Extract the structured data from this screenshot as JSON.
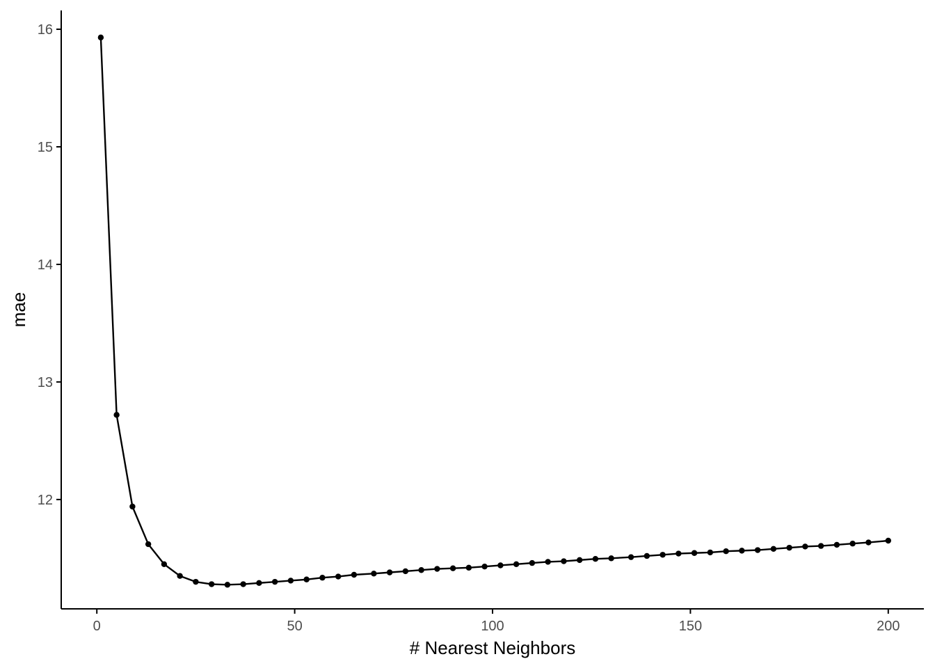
{
  "chart_data": {
    "type": "line",
    "title": "",
    "xlabel": "# Nearest Neighbors",
    "ylabel": "mae",
    "xlim": [
      -9,
      209
    ],
    "ylim": [
      11.07,
      16.16
    ],
    "x_ticks": [
      0,
      50,
      100,
      150,
      200
    ],
    "y_ticks": [
      12,
      13,
      14,
      15,
      16
    ],
    "grid": false,
    "legend": "none",
    "colors": {
      "line": "#000000",
      "points": "#000000",
      "axis": "#000000",
      "tick_label": "#4d4d4d"
    },
    "series": [
      {
        "x": [
          1,
          5,
          9,
          13,
          17,
          21,
          25,
          29,
          33,
          37,
          41,
          45,
          49,
          53,
          57,
          61,
          65,
          70,
          74,
          78,
          82,
          86,
          90,
          94,
          98,
          102,
          106,
          110,
          114,
          118,
          122,
          126,
          130,
          135,
          139,
          143,
          147,
          151,
          155,
          159,
          163,
          167,
          171,
          175,
          179,
          183,
          187,
          191,
          195,
          200
        ],
        "y": [
          15.93,
          12.72,
          11.94,
          11.62,
          11.45,
          11.35,
          11.3,
          11.28,
          11.275,
          11.28,
          11.29,
          11.3,
          11.31,
          11.32,
          11.335,
          11.345,
          11.36,
          11.37,
          11.38,
          11.39,
          11.4,
          11.41,
          11.415,
          11.42,
          11.43,
          11.44,
          11.45,
          11.46,
          11.47,
          11.475,
          11.485,
          11.495,
          11.5,
          11.51,
          11.52,
          11.53,
          11.54,
          11.545,
          11.55,
          11.56,
          11.565,
          11.57,
          11.58,
          11.59,
          11.6,
          11.605,
          11.615,
          11.625,
          11.635,
          11.65
        ]
      }
    ]
  }
}
